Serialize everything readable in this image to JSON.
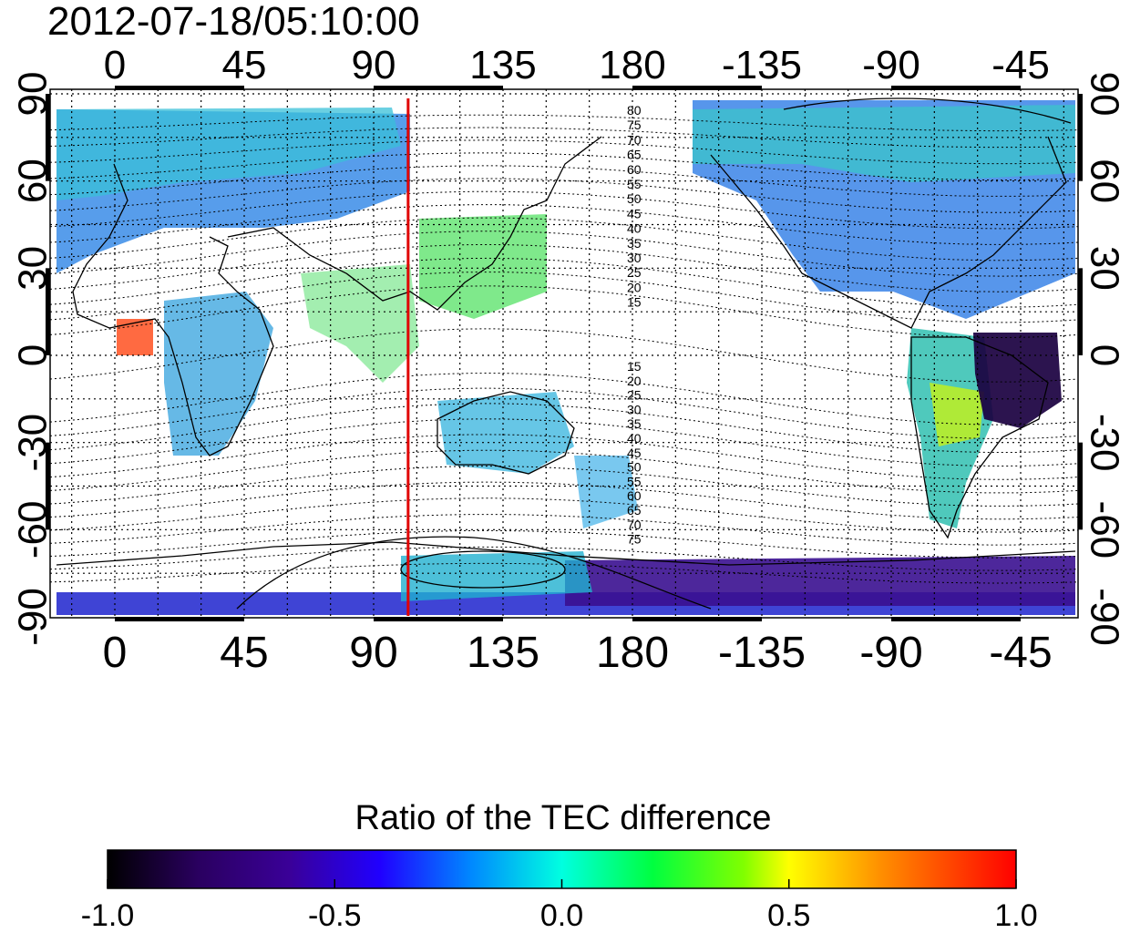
{
  "title": "2012-07-18/05:10:00",
  "top_lon_ticks": [
    "0",
    "45",
    "90",
    "135",
    "180",
    "-135",
    "-90",
    "-45"
  ],
  "bottom_lon_ticks": [
    "0",
    "45",
    "90",
    "135",
    "180",
    "-135",
    "-90",
    "-45"
  ],
  "left_lat_ticks": [
    "90",
    "60",
    "30",
    "0",
    "-30",
    "-60",
    "-90"
  ],
  "right_lat_ticks": [
    "90",
    "60",
    "30",
    "0",
    "-30",
    "-60",
    "-90"
  ],
  "contour_labels_north": [
    "80",
    "75",
    "70",
    "65",
    "60",
    "55",
    "50",
    "45",
    "40",
    "35",
    "30",
    "25",
    "20",
    "15"
  ],
  "contour_labels_south": [
    "15",
    "20",
    "25",
    "30",
    "35",
    "40",
    "45",
    "50",
    "55",
    "60",
    "65",
    "70",
    "75"
  ],
  "marker_line": {
    "longitude": 102,
    "color": "#e00000"
  },
  "colorbar": {
    "label": "Ratio of the TEC difference",
    "ticks": [
      "-1.0",
      "-0.5",
      "0.0",
      "0.5",
      "1.0"
    ],
    "colors": [
      "#000000",
      "#3a0078",
      "#2200ff",
      "#00a0ff",
      "#00ffd0",
      "#00ff40",
      "#b0ff00",
      "#ffff00",
      "#ff8000",
      "#ff0000"
    ]
  },
  "colors": {
    "ocean_bg": "#ffffff",
    "tec_north": "#2a80e8",
    "tec_tropic": "#40c8a0",
    "tec_asia": "#50e060",
    "tec_antarctic": "#3a10a0",
    "tec_brazil": "#1a0050",
    "marker": "#e00000"
  }
}
